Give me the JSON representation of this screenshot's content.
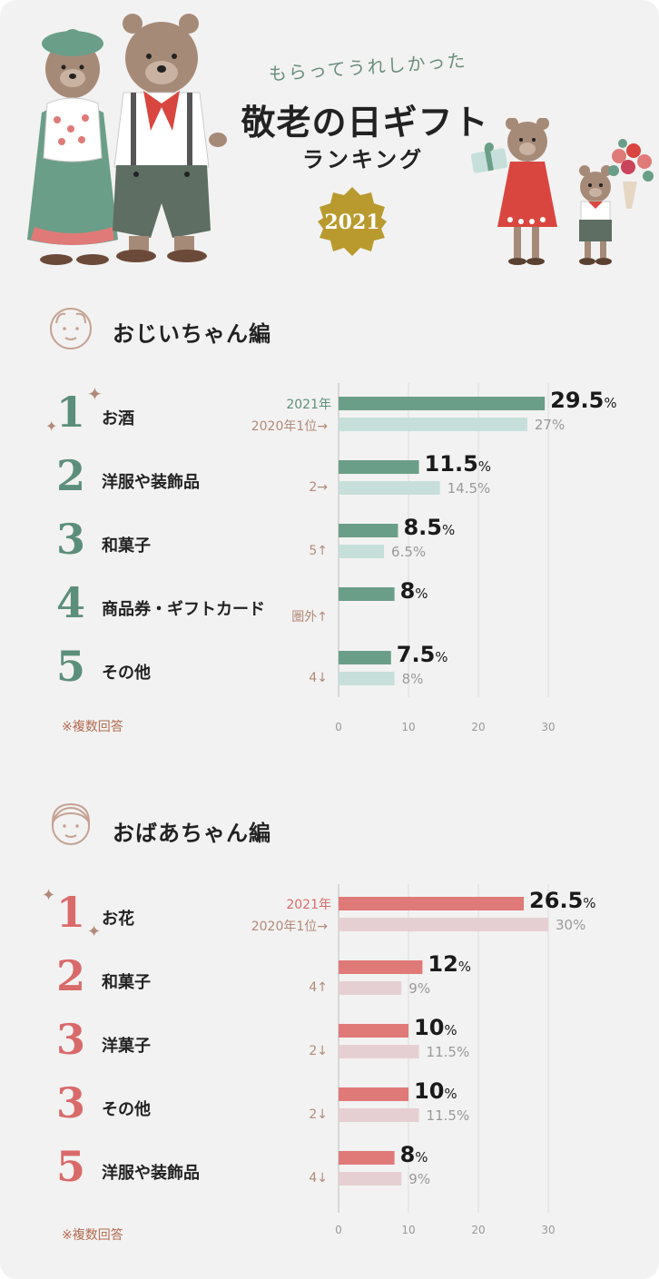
{
  "header": {
    "subtitle": "もらってうれしかった",
    "title": "敬老の日ギフト",
    "ranking": "ランキング",
    "year_badge": "2021"
  },
  "colors": {
    "background": "#f3f2f2",
    "grandpa_accent": "#5c8f7b",
    "grandpa_current_bar": "#6a9e88",
    "grandpa_prev_bar": "#c6dfda",
    "grandma_accent": "#d96a6a",
    "grandma_current_bar": "#e07a78",
    "grandma_prev_bar": "#e6cfd2",
    "badge": "#b99a2e"
  },
  "chart_data": [
    {
      "type": "bar",
      "title": "おじいちゃん編",
      "orientation": "horizontal",
      "note": "※複数回答",
      "series_labels": {
        "current": "2021年",
        "previous_first": "2020年1位→"
      },
      "xlim": [
        0,
        30
      ],
      "ticks": [
        "0",
        "10",
        "20",
        "30"
      ],
      "items": [
        {
          "rank": "1",
          "name": "お酒",
          "value": 29.5,
          "value_label": "29.5",
          "prev_value": 27,
          "prev_label": "27%",
          "prev_rank": "2020年1位→"
        },
        {
          "rank": "2",
          "name": "洋服や装飾品",
          "value": 11.5,
          "value_label": "11.5",
          "prev_value": 14.5,
          "prev_label": "14.5%",
          "prev_rank": "2→"
        },
        {
          "rank": "3",
          "name": "和菓子",
          "value": 8.5,
          "value_label": "8.5",
          "prev_value": 6.5,
          "prev_label": "6.5%",
          "prev_rank": "5↑"
        },
        {
          "rank": "4",
          "name": "商品券・ギフトカード",
          "value": 8,
          "value_label": "8",
          "prev_value": null,
          "prev_label": "",
          "prev_rank": "圏外↑"
        },
        {
          "rank": "5",
          "name": "その他",
          "value": 7.5,
          "value_label": "7.5",
          "prev_value": 8,
          "prev_label": "8%",
          "prev_rank": "4↓"
        }
      ]
    },
    {
      "type": "bar",
      "title": "おばあちゃん編",
      "orientation": "horizontal",
      "note": "※複数回答",
      "series_labels": {
        "current": "2021年",
        "previous_first": "2020年1位→"
      },
      "xlim": [
        0,
        30
      ],
      "ticks": [
        "0",
        "10",
        "20",
        "30"
      ],
      "items": [
        {
          "rank": "1",
          "name": "お花",
          "value": 26.5,
          "value_label": "26.5",
          "prev_value": 30,
          "prev_label": "30%",
          "prev_rank": "2020年1位→"
        },
        {
          "rank": "2",
          "name": "和菓子",
          "value": 12,
          "value_label": "12",
          "prev_value": 9,
          "prev_label": "9%",
          "prev_rank": "4↑"
        },
        {
          "rank": "3",
          "name": "洋菓子",
          "value": 10,
          "value_label": "10",
          "prev_value": 11.5,
          "prev_label": "11.5%",
          "prev_rank": "2↓"
        },
        {
          "rank": "3",
          "name": "その他",
          "value": 10,
          "value_label": "10",
          "prev_value": 11.5,
          "prev_label": "11.5%",
          "prev_rank": "2↓"
        },
        {
          "rank": "5",
          "name": "洋服や装飾品",
          "value": 8,
          "value_label": "8",
          "prev_value": 9,
          "prev_label": "9%",
          "prev_rank": "4↓"
        }
      ]
    }
  ],
  "percent_sign": "%"
}
